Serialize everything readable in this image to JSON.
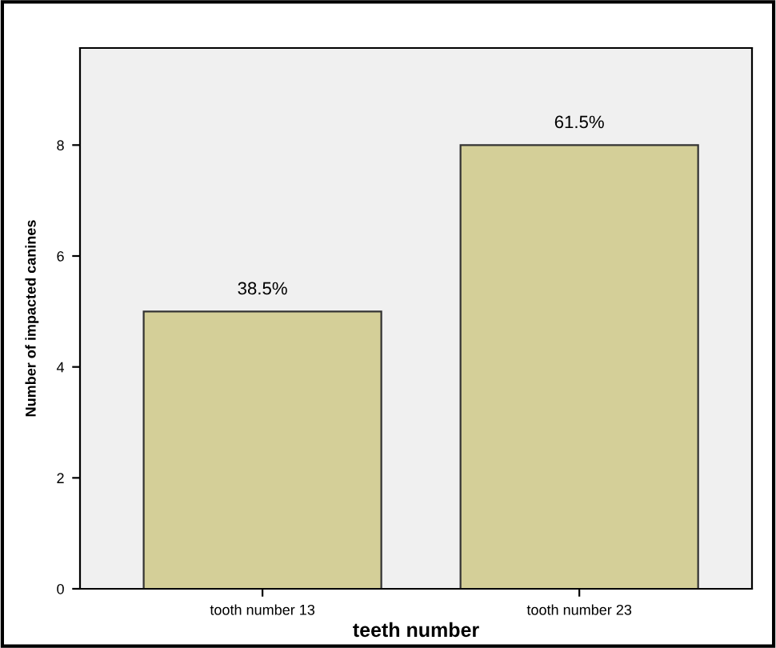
{
  "chart_data": {
    "type": "bar",
    "xlabel": "teeth number",
    "ylabel": "Number of impacted canines",
    "categories": [
      "tooth number 13",
      "tooth number 23"
    ],
    "values": [
      5,
      8
    ],
    "color": "#d4cf98",
    "annotations": [
      {
        "text": "38.5%",
        "x": "tooth number 13",
        "y": 5
      },
      {
        "text": "61.5%",
        "x": "tooth number 23",
        "y": 8
      }
    ],
    "ylim": [
      0,
      9.75
    ],
    "yticks": [
      0,
      2,
      4,
      6,
      8
    ],
    "grid": false
  }
}
